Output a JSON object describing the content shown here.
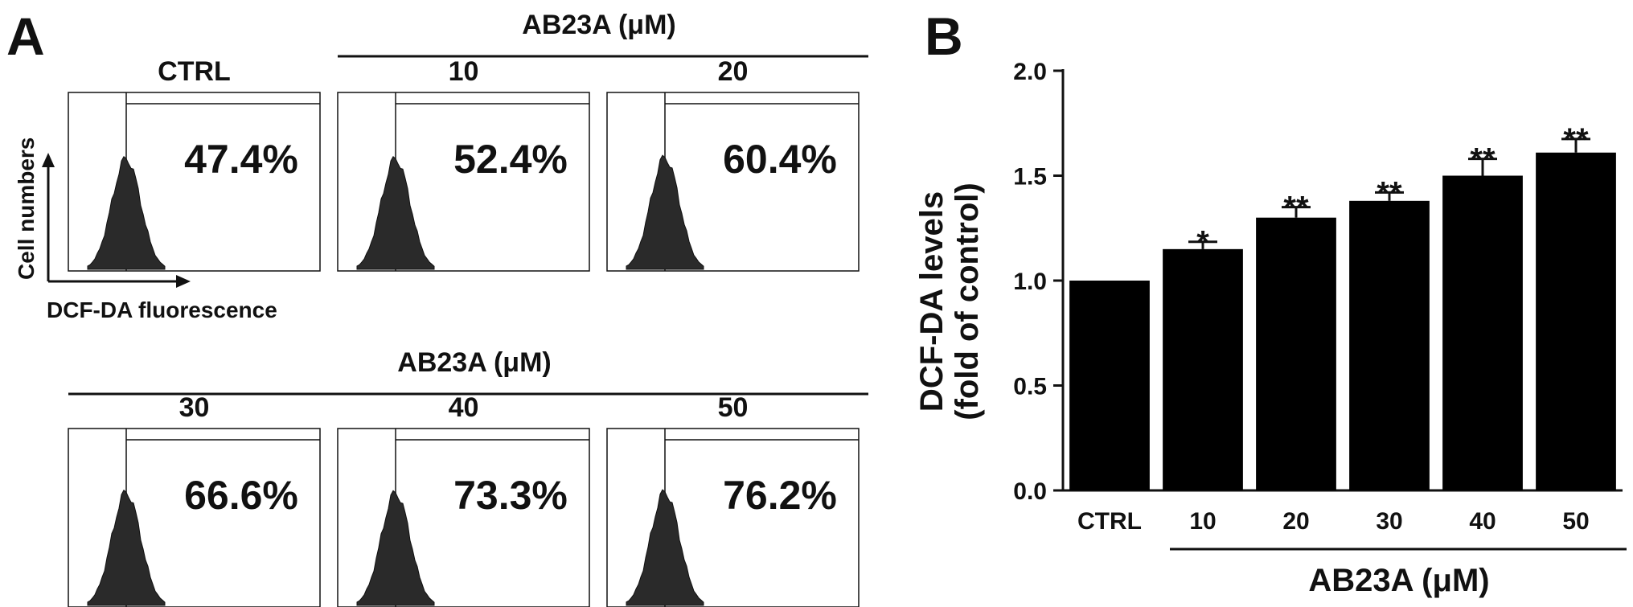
{
  "panel_a": {
    "label": "A",
    "group_label": "AB23A (μM)",
    "axis_y_label": "Cell numbers",
    "axis_x_label": "DCF-DA fluorescence",
    "top_row": [
      {
        "name": "CTRL",
        "percent": "47.4%",
        "peak": 0.5
      },
      {
        "name": "10",
        "percent": "52.4%",
        "peak": 0.5
      },
      {
        "name": "20",
        "percent": "60.4%",
        "peak": 0.55
      }
    ],
    "bottom_row": [
      {
        "name": "30",
        "percent": "66.6%",
        "peak": 0.6
      },
      {
        "name": "40",
        "percent": "73.3%",
        "peak": 0.58
      },
      {
        "name": "50",
        "percent": "76.2%",
        "peak": 0.62
      }
    ]
  },
  "panel_b": {
    "label": "B",
    "chart_data": {
      "type": "bar",
      "categories": [
        "CTRL",
        "10",
        "20",
        "30",
        "40",
        "50"
      ],
      "values": [
        1.0,
        1.15,
        1.3,
        1.38,
        1.5,
        1.61
      ],
      "errors": [
        0.0,
        0.035,
        0.05,
        0.04,
        0.08,
        0.065
      ],
      "significance": [
        "",
        "*",
        "**",
        "**",
        "**",
        "**"
      ],
      "ylabel_line1": "DCF-DA levels",
      "ylabel_line2": "(fold of control)",
      "xgroup_label": "AB23A (μM)",
      "ylim": [
        0,
        2.0
      ],
      "yticks": [
        "0.0",
        "0.5",
        "1.0",
        "1.5",
        "2.0"
      ],
      "bar_color": "#000000"
    }
  }
}
